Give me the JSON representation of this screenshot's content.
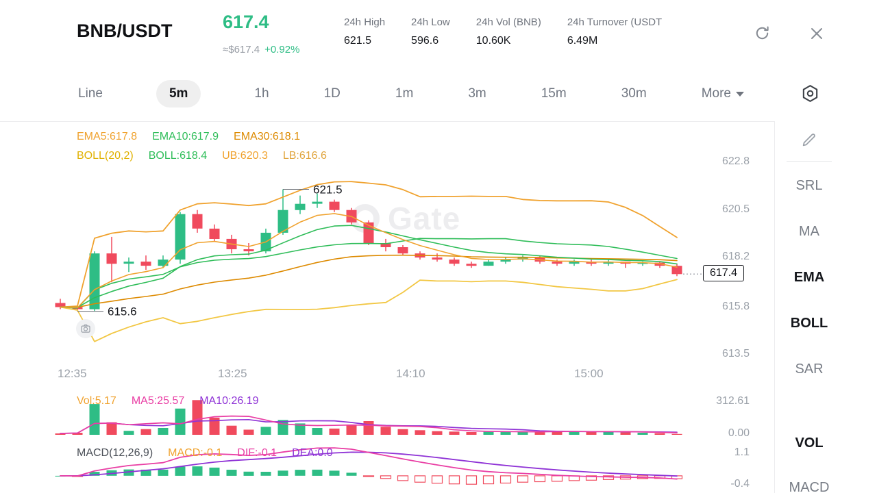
{
  "palette": {
    "up": "#2ebd85",
    "down": "#f04a5d",
    "ema5": "#f0a22e",
    "ema10": "#2fbd59",
    "ema30": "#dd8a00",
    "boll_mid": "#2fbd59",
    "boll_up": "#f0a22e",
    "boll_low": "#f2c744",
    "vol_ma5": "#e93ea4",
    "vol_ma10": "#8f33d6",
    "dif": "#e93ea4",
    "dea": "#8f33d6",
    "axis_gray": "#9ba1a9"
  },
  "header": {
    "pair": "BNB/USDT",
    "price": "617.4",
    "approx": "≈$617.4",
    "change": "+0.92%",
    "stats": [
      {
        "label": "24h High",
        "value": "621.5"
      },
      {
        "label": "24h Low",
        "value": "596.6"
      },
      {
        "label": "24h Vol (BNB)",
        "value": "10.60K"
      },
      {
        "label": "24h Turnover (USDT",
        "value": "6.49M"
      }
    ]
  },
  "tabs": {
    "items": [
      {
        "label": "Line",
        "active": false
      },
      {
        "label": "5m",
        "active": true
      },
      {
        "label": "1h",
        "active": false
      },
      {
        "label": "1D",
        "active": false
      },
      {
        "label": "1m",
        "active": false
      },
      {
        "label": "3m",
        "active": false
      },
      {
        "label": "15m",
        "active": false
      },
      {
        "label": "30m",
        "active": false
      }
    ],
    "more_label": "More"
  },
  "sidebar": {
    "items": [
      {
        "label": "SRL",
        "active": false
      },
      {
        "label": "MA",
        "active": false
      },
      {
        "label": "EMA",
        "active": true
      },
      {
        "label": "BOLL",
        "active": true
      },
      {
        "label": "SAR",
        "active": false
      },
      {
        "label": "VOL",
        "active": true
      },
      {
        "label": "MACD",
        "active": false
      }
    ]
  },
  "chart": {
    "watermark": "Gate",
    "indicator_rows": {
      "ema": [
        {
          "text": "EMA5:617.8",
          "color": "#f0a22e"
        },
        {
          "text": "EMA10:617.9",
          "color": "#2fbd59"
        },
        {
          "text": "EMA30:618.1",
          "color": "#dd8a00"
        }
      ],
      "boll": [
        {
          "text": "BOLL(20,2)",
          "color": "#e0b100"
        },
        {
          "text": "BOLL:618.4",
          "color": "#2fbd59"
        },
        {
          "text": "UB:620.3",
          "color": "#f0a22e"
        },
        {
          "text": "LB:616.6",
          "color": "#e0a43c"
        }
      ],
      "vol": [
        {
          "text": "Vol:5.17",
          "color": "#f0a22e"
        },
        {
          "text": "MA5:25.57",
          "color": "#e93ea4"
        },
        {
          "text": "MA10:26.19",
          "color": "#8f33d6"
        }
      ],
      "macd": [
        {
          "text": "MACD(12,26,9)",
          "color": "#4a4f57"
        },
        {
          "text": "MACD:-0.1",
          "color": "#f0a22e"
        },
        {
          "text": "DIF:-0.1",
          "color": "#e93ea4"
        },
        {
          "text": "DEA:0.0",
          "color": "#8f33d6"
        }
      ]
    },
    "price_ticks": [
      "622.8",
      "620.5",
      "618.2",
      "615.8",
      "613.5"
    ],
    "time_ticks": [
      "12:35",
      "13:25",
      "14:10",
      "15:00"
    ],
    "vol_ticks": [
      "312.61",
      "0.00"
    ],
    "macd_ticks": [
      "1.1",
      "-0.4"
    ],
    "last_price_label": "617.4",
    "annotations": [
      {
        "text": "621.5",
        "candle": 13,
        "price": 621.5
      },
      {
        "text": "615.6",
        "candle": 1,
        "price": 615.6
      }
    ]
  },
  "chart_data": {
    "type": "candlestick",
    "pair": "BNB/USDT",
    "interval": "5m",
    "price_range": [
      613.0,
      624.6
    ],
    "vol_range": [
      0,
      312.61
    ],
    "macd_range": [
      -0.4,
      1.1
    ],
    "indicators": {
      "ema": [
        5,
        10,
        30
      ],
      "boll": [
        20,
        2
      ],
      "macd": [
        12,
        26,
        9
      ]
    },
    "candles_ohlc": [
      [
        616.0,
        616.2,
        615.7,
        615.8
      ],
      [
        615.8,
        615.9,
        615.6,
        615.7
      ],
      [
        615.7,
        618.5,
        615.6,
        618.4
      ],
      [
        618.4,
        619.2,
        617.0,
        617.9
      ],
      [
        617.9,
        618.2,
        617.5,
        618.0
      ],
      [
        618.0,
        618.3,
        617.6,
        617.8
      ],
      [
        617.8,
        618.3,
        617.7,
        618.1
      ],
      [
        618.1,
        620.4,
        617.9,
        620.3
      ],
      [
        620.3,
        620.5,
        619.4,
        619.6
      ],
      [
        619.6,
        619.8,
        619.0,
        619.1
      ],
      [
        619.1,
        619.3,
        618.4,
        618.6
      ],
      [
        618.6,
        618.9,
        618.3,
        618.5
      ],
      [
        618.5,
        619.6,
        618.4,
        619.4
      ],
      [
        619.4,
        621.5,
        619.3,
        620.5
      ],
      [
        620.5,
        621.2,
        620.3,
        620.8
      ],
      [
        620.8,
        621.3,
        620.6,
        620.9
      ],
      [
        620.9,
        621.0,
        620.4,
        620.5
      ],
      [
        620.5,
        620.6,
        619.8,
        619.9
      ],
      [
        619.9,
        620.0,
        618.8,
        618.9
      ],
      [
        618.9,
        619.1,
        618.5,
        618.7
      ],
      [
        618.7,
        618.8,
        618.3,
        618.4
      ],
      [
        618.4,
        618.5,
        618.1,
        618.2
      ],
      [
        618.2,
        618.4,
        618.0,
        618.1
      ],
      [
        618.1,
        618.2,
        617.8,
        617.9
      ],
      [
        617.9,
        618.0,
        617.7,
        617.8
      ],
      [
        617.8,
        618.1,
        617.8,
        618.0
      ],
      [
        618.0,
        618.2,
        617.9,
        618.1
      ],
      [
        618.1,
        618.3,
        618.0,
        618.2
      ],
      [
        618.2,
        618.3,
        617.9,
        618.0
      ],
      [
        618.0,
        618.1,
        617.8,
        617.9
      ],
      [
        617.9,
        618.1,
        617.8,
        618.0
      ],
      [
        618.0,
        618.1,
        617.8,
        617.9
      ],
      [
        617.9,
        618.1,
        617.8,
        618.0
      ],
      [
        618.0,
        618.0,
        617.7,
        617.9
      ],
      [
        617.9,
        618.0,
        617.8,
        617.95
      ],
      [
        617.95,
        618.0,
        617.7,
        617.8
      ],
      [
        617.8,
        617.9,
        617.3,
        617.4
      ]
    ],
    "volumes": [
      12,
      18,
      270,
      110,
      35,
      50,
      60,
      230,
      305,
      150,
      80,
      45,
      70,
      130,
      100,
      60,
      55,
      85,
      120,
      70,
      50,
      40,
      32,
      28,
      24,
      26,
      30,
      27,
      22,
      35,
      30,
      28,
      26,
      22,
      18,
      14,
      5.17
    ]
  }
}
